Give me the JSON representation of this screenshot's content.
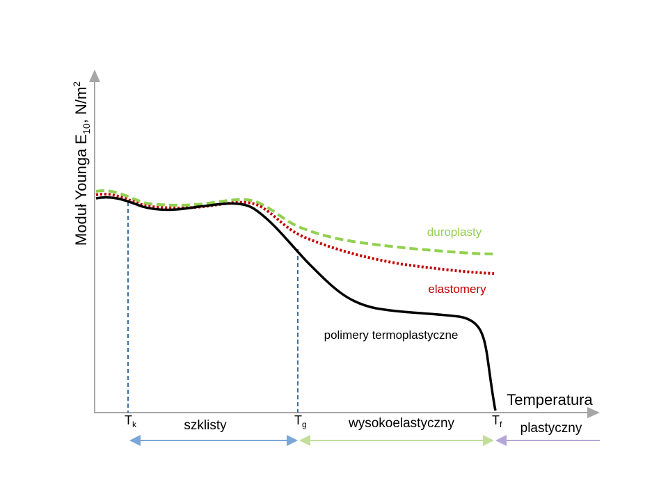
{
  "y_label": {
    "main": "Moduł Younga E",
    "sub": "10",
    "unit": ", N/m",
    "sup": "2"
  },
  "x_label": "Temperatura",
  "markers": [
    {
      "symbol": "T",
      "sub": "k"
    },
    {
      "symbol": "T",
      "sub": "g"
    },
    {
      "symbol": "T",
      "sub": "f"
    }
  ],
  "regions": [
    "szklisty",
    "wysokoelastyczny",
    "plastyczny"
  ],
  "curves": {
    "duroplasty": "duroplasty",
    "elastomery": "elastomery",
    "termoplasty": "polimery termoplastyczne"
  }
}
